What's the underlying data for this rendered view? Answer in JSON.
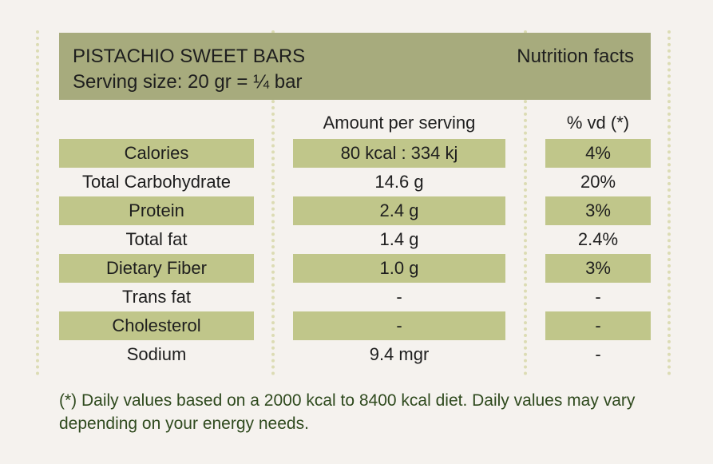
{
  "header": {
    "title": "PISTACHIO SWEET BARS",
    "serving": "Serving size: 20 gr = ¼ bar",
    "facts_label": "Nutrition facts"
  },
  "columns": {
    "amount": "Amount per serving",
    "vd": "% vd (*)"
  },
  "rows": [
    {
      "name": "Calories",
      "amount": "80 kcal : 334 kj",
      "vd": "4%"
    },
    {
      "name": "Total Carbohydrate",
      "amount": "14.6 g",
      "vd": "20%"
    },
    {
      "name": "Protein",
      "amount": "2.4 g",
      "vd": "3%"
    },
    {
      "name": "Total fat",
      "amount": "1.4 g",
      "vd": "2.4%"
    },
    {
      "name": "Dietary Fiber",
      "amount": "1.0 g",
      "vd": "3%"
    },
    {
      "name": "Trans fat",
      "amount": "-",
      "vd": "-"
    },
    {
      "name": "Cholesterol",
      "amount": "-",
      "vd": "-"
    },
    {
      "name": "Sodium",
      "amount": "9.4 mgr",
      "vd": "-"
    }
  ],
  "footnote": "(*) Daily values based on a 2000 kcal to 8400 kcal diet. Daily values may vary depending on your energy needs.",
  "colors": {
    "header_bg": "#a7ab7d",
    "row_shade": "#c0c68a",
    "footnote_text": "#2f4a1e",
    "dots": "#dcdcb4"
  }
}
